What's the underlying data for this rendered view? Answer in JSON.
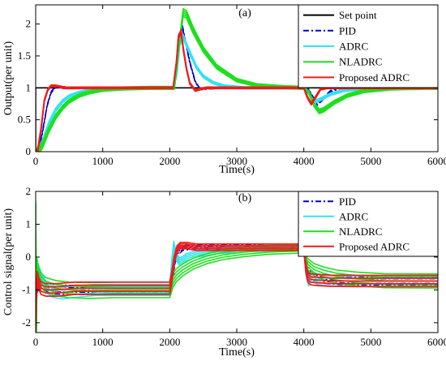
{
  "chart_data": [
    {
      "type": "line",
      "title": "(a)",
      "xlabel": "Time(s)",
      "ylabel": "Output(per unit)",
      "xlim": [
        0,
        6000
      ],
      "ylim": [
        0,
        2.3
      ],
      "xticks": [
        0,
        1000,
        2000,
        3000,
        4000,
        5000,
        6000
      ],
      "yticks": [
        0,
        0.5,
        1,
        1.5,
        2
      ],
      "x_tick_labels": [
        "0",
        "1000",
        "2000",
        "3000",
        "4000",
        "5000",
        "6000"
      ],
      "y_tick_labels": [
        "0",
        "0.5",
        "1",
        "1.5",
        "2"
      ],
      "legend_position": "top-right",
      "grid": false,
      "series": [
        {
          "name": "Set point",
          "color": "#000000",
          "dash": "solid",
          "width": 1.6,
          "x": [
            0,
            0,
            2000,
            2000,
            6000
          ],
          "y": [
            0,
            1,
            1,
            1,
            1
          ]
        },
        {
          "name": "PID",
          "color": "#0000cc",
          "dash": "dashdot",
          "width": 1.3,
          "x": [
            0,
            40,
            100,
            170,
            230,
            300,
            350,
            400,
            500,
            700,
            1000,
            1500,
            2000,
            2060,
            2110,
            2150,
            2180,
            2230,
            2300,
            2380,
            2450,
            2550,
            2700,
            2900,
            3200,
            3600,
            4000,
            4060,
            4120,
            4200,
            4280,
            4400,
            4550,
            4750,
            5000,
            6000
          ],
          "y": [
            0,
            0.02,
            0.3,
            0.72,
            0.93,
            1.02,
            1.02,
            1.01,
            1.0,
            1.0,
            1.0,
            1.0,
            1.0,
            1.0,
            1.3,
            1.78,
            2.0,
            1.75,
            1.4,
            1.1,
            0.98,
            0.99,
            1.0,
            1.0,
            1.0,
            1.0,
            1.0,
            1.0,
            0.88,
            0.74,
            0.82,
            0.95,
            1.0,
            1.0,
            1.0,
            1.0
          ],
          "band": 0.05
        },
        {
          "name": "ADRC",
          "color": "#33e3f0",
          "dash": "solid",
          "width": 1.5,
          "x": [
            0,
            40,
            100,
            200,
            300,
            400,
            500,
            650,
            800,
            1000,
            1300,
            1600,
            2000,
            2060,
            2110,
            2150,
            2200,
            2300,
            2400,
            2500,
            2650,
            2800,
            3100,
            3500,
            4000,
            4070,
            4150,
            4250,
            4400,
            4600,
            4900,
            5400,
            6000
          ],
          "y": [
            0,
            0.02,
            0.15,
            0.45,
            0.66,
            0.79,
            0.87,
            0.93,
            0.96,
            0.985,
            0.995,
            1.0,
            1.0,
            1.0,
            1.25,
            1.7,
            1.8,
            1.55,
            1.32,
            1.18,
            1.08,
            1.03,
            1.0,
            1.0,
            1.0,
            0.92,
            0.78,
            0.82,
            0.9,
            0.96,
            0.99,
            1.0,
            1.0
          ],
          "band": 0.07
        },
        {
          "name": "NLADRC",
          "color": "#1ee01e",
          "dash": "solid",
          "width": 1.6,
          "x": [
            0,
            40,
            100,
            200,
            300,
            400,
            500,
            650,
            800,
            1000,
            1300,
            1700,
            2000,
            2070,
            2130,
            2200,
            2250,
            2350,
            2500,
            2700,
            3000,
            3300,
            3700,
            4000,
            4080,
            4150,
            4230,
            4300,
            4450,
            4650,
            4900,
            5300,
            5800,
            6000
          ],
          "y": [
            0,
            0.02,
            0.1,
            0.35,
            0.55,
            0.69,
            0.79,
            0.88,
            0.93,
            0.97,
            0.99,
            1.0,
            1.0,
            1.0,
            1.6,
            2.18,
            2.15,
            1.9,
            1.6,
            1.33,
            1.12,
            1.04,
            1.01,
            1.0,
            0.92,
            0.74,
            0.63,
            0.66,
            0.77,
            0.88,
            0.95,
            0.99,
            1.0,
            1.0
          ],
          "band": 0.09
        },
        {
          "name": "Proposed ADRC",
          "color": "#ee1c1c",
          "dash": "solid",
          "width": 1.7,
          "x": [
            0,
            30,
            80,
            130,
            180,
            230,
            290,
            350,
            420,
            550,
            800,
            1200,
            2000,
            2050,
            2100,
            2130,
            2170,
            2200,
            2250,
            2300,
            2380,
            2450,
            2550,
            2700,
            3000,
            4000,
            4050,
            4110,
            4180,
            4250,
            4350,
            4500,
            6000
          ],
          "y": [
            0,
            0.02,
            0.35,
            0.8,
            0.97,
            1.03,
            1.03,
            1.02,
            1.0,
            1.0,
            1.0,
            1.0,
            1.0,
            1.0,
            1.4,
            1.8,
            1.88,
            1.62,
            1.3,
            1.07,
            0.96,
            0.98,
            1.0,
            1.0,
            1.0,
            1.0,
            0.86,
            0.75,
            0.86,
            0.98,
            1.0,
            1.0,
            1.0
          ],
          "band": 0.05
        }
      ]
    },
    {
      "type": "line",
      "title": "(b)",
      "xlabel": "Time(s)",
      "ylabel": "Control signal(per unit)",
      "xlim": [
        0,
        6000
      ],
      "ylim": [
        -2.3,
        2
      ],
      "xticks": [
        0,
        1000,
        2000,
        3000,
        4000,
        5000,
        6000
      ],
      "yticks": [
        -2,
        -1,
        0,
        1,
        2
      ],
      "x_tick_labels": [
        "0",
        "1000",
        "2000",
        "3000",
        "4000",
        "5000",
        "6000"
      ],
      "y_tick_labels": [
        "-2",
        "-1",
        "0",
        "1",
        "2"
      ],
      "legend_position": "top-right",
      "grid": false,
      "series": [
        {
          "name": "PID",
          "color": "#0000cc",
          "dash": "dashdot",
          "width": 1.3,
          "x": [
            0,
            30,
            70,
            120,
            200,
            300,
            500,
            800,
            1200,
            1600,
            2000,
            2040,
            2080,
            2120,
            2200,
            2300,
            2500,
            2800,
            3200,
            3600,
            4000,
            4040,
            4080,
            4150,
            4300,
            4600,
            5000,
            6000
          ],
          "y": [
            -1.3,
            -0.9,
            -0.75,
            -0.85,
            -0.95,
            -0.98,
            -1.0,
            -1.0,
            -1.0,
            -1.0,
            -1.0,
            -0.7,
            -0.1,
            0.15,
            0.28,
            0.3,
            0.3,
            0.3,
            0.3,
            0.3,
            0.3,
            -0.2,
            -0.45,
            -0.6,
            -0.68,
            -0.72,
            -0.73,
            -0.73
          ],
          "band": 0.15
        },
        {
          "name": "ADRC",
          "color": "#33e3f0",
          "dash": "solid",
          "width": 1.5,
          "x": [
            0,
            30,
            80,
            150,
            250,
            400,
            600,
            900,
            1300,
            2000,
            2030,
            2060,
            2100,
            2150,
            2250,
            2400,
            2700,
            3100,
            3600,
            4000,
            4030,
            4070,
            4120,
            4200,
            4350,
            4600,
            5000,
            6000
          ],
          "y": [
            -0.1,
            -0.3,
            -0.6,
            -0.9,
            -1.05,
            -1.1,
            -1.05,
            -1.0,
            -1.0,
            -1.0,
            -0.2,
            0.4,
            0.0,
            -0.15,
            0.0,
            0.1,
            0.2,
            0.25,
            0.28,
            0.3,
            -0.4,
            -0.72,
            -0.6,
            -0.68,
            -0.72,
            -0.73,
            -0.73,
            -0.73
          ],
          "band": 0.18
        },
        {
          "name": "NLADRC",
          "color": "#1ee01e",
          "dash": "solid",
          "width": 1.6,
          "x": [
            0,
            10,
            20,
            40,
            80,
            150,
            300,
            500,
            800,
            1200,
            1600,
            2000,
            2050,
            2100,
            2200,
            2350,
            2550,
            2800,
            3100,
            3500,
            4000,
            4050,
            4150,
            4300,
            4500,
            4800,
            5200,
            6000
          ],
          "y": [
            1.6,
            -2.2,
            -0.2,
            -0.5,
            -0.7,
            -0.85,
            -0.95,
            -1.0,
            -1.02,
            -1.0,
            -1.0,
            -1.0,
            -0.7,
            -0.55,
            -0.38,
            -0.2,
            -0.05,
            0.07,
            0.15,
            0.22,
            0.25,
            -0.2,
            -0.38,
            -0.5,
            -0.6,
            -0.67,
            -0.72,
            -0.73
          ],
          "band": 0.25
        },
        {
          "name": "Proposed ADRC",
          "color": "#ee1c1c",
          "dash": "solid",
          "width": 1.7,
          "x": [
            0,
            10,
            25,
            45,
            80,
            150,
            300,
            600,
            1000,
            1500,
            2000,
            2030,
            2070,
            2110,
            2160,
            2250,
            2400,
            2700,
            3200,
            4000,
            4030,
            4060,
            4100,
            4200,
            4400,
            4800,
            6000
          ],
          "y": [
            -2.0,
            -1.1,
            -0.6,
            -0.8,
            -0.95,
            -1.0,
            -1.0,
            -0.95,
            -0.95,
            -0.95,
            -0.95,
            -0.6,
            -0.05,
            0.25,
            0.35,
            0.35,
            0.3,
            0.3,
            0.3,
            0.3,
            -0.3,
            -0.6,
            -0.68,
            -0.7,
            -0.72,
            -0.73,
            -0.73
          ],
          "band": 0.2
        }
      ]
    }
  ]
}
